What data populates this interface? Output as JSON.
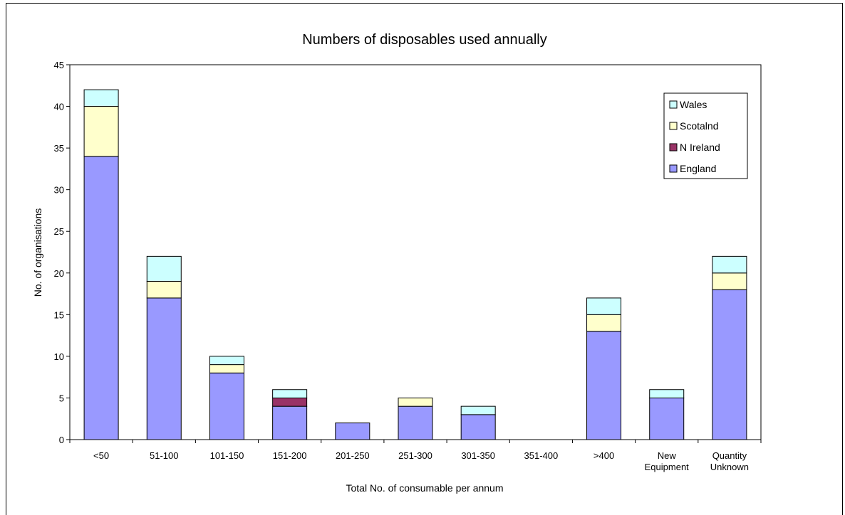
{
  "chart_data": {
    "type": "bar",
    "stacked": true,
    "title": "Numbers of disposables used annually",
    "xlabel": "Total No. of consumable per annum",
    "ylabel": "No. of organisations",
    "ylim": [
      0,
      45
    ],
    "yticks": [
      0,
      5,
      10,
      15,
      20,
      25,
      30,
      35,
      40,
      45
    ],
    "grid": false,
    "legend_position": "top-right",
    "categories": [
      [
        "<50"
      ],
      [
        "51-100"
      ],
      [
        "101-150"
      ],
      [
        "151-200"
      ],
      [
        "201-250"
      ],
      [
        "251-300"
      ],
      [
        "301-350"
      ],
      [
        "351-400"
      ],
      [
        ">400"
      ],
      [
        "New",
        "Equipment"
      ],
      [
        "Quantity",
        "Unknown"
      ]
    ],
    "series": [
      {
        "name": "England",
        "color": "#9999ff",
        "values": [
          34,
          17,
          8,
          4,
          2,
          4,
          3,
          0,
          13,
          5,
          18
        ]
      },
      {
        "name": "N Ireland",
        "color": "#993366",
        "values": [
          0,
          0,
          0,
          1,
          0,
          0,
          0,
          0,
          0,
          0,
          0
        ]
      },
      {
        "name": "Scotalnd",
        "color": "#ffffcc",
        "values": [
          6,
          2,
          1,
          0,
          0,
          1,
          0,
          0,
          2,
          0,
          2
        ]
      },
      {
        "name": "Wales",
        "color": "#ccffff",
        "values": [
          2,
          3,
          1,
          1,
          0,
          0,
          1,
          0,
          2,
          1,
          2
        ]
      }
    ],
    "legend_order": [
      "Wales",
      "Scotalnd",
      "N Ireland",
      "England"
    ]
  }
}
